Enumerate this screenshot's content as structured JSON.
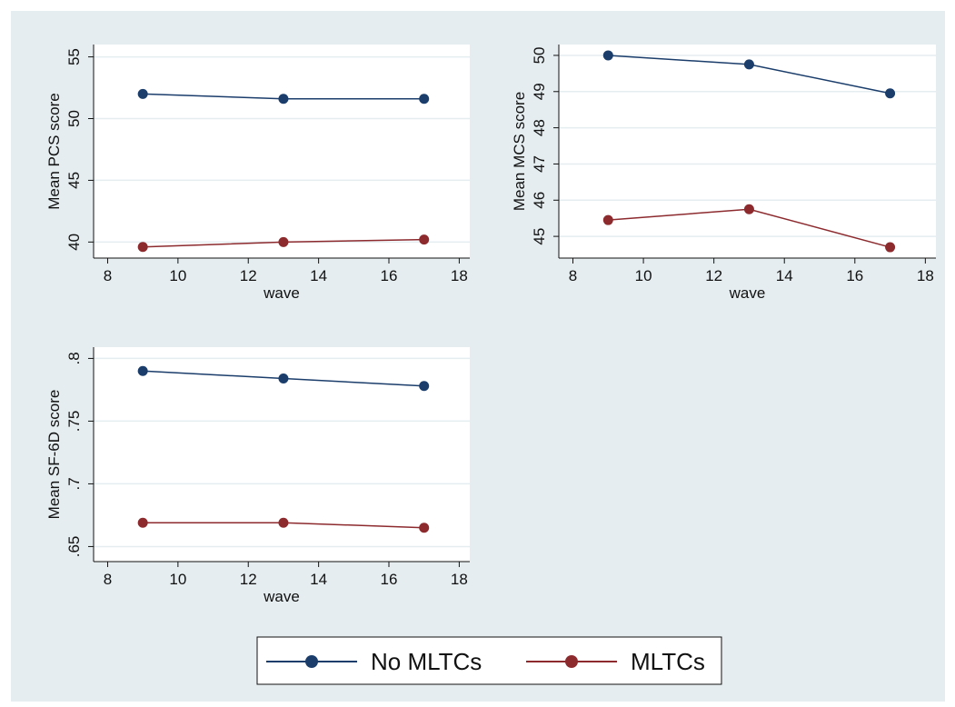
{
  "chart_data": [
    {
      "type": "line",
      "x_label": "wave",
      "y_label": "Mean PCS score",
      "x": [
        9,
        13,
        17
      ],
      "series": [
        {
          "values": [
            52.0,
            51.6,
            51.6
          ]
        },
        {
          "values": [
            39.6,
            40.0,
            40.2
          ]
        }
      ],
      "xlim": [
        7.6,
        18.3
      ],
      "xticks": [
        8,
        10,
        12,
        14,
        16,
        18
      ],
      "ylim": [
        38.7,
        56
      ],
      "yticks": [
        40,
        45,
        50,
        55
      ],
      "grid": true
    },
    {
      "type": "line",
      "x_label": "wave",
      "y_label": "Mean MCS score",
      "x": [
        9,
        13,
        17
      ],
      "series": [
        {
          "values": [
            50.0,
            49.75,
            48.95
          ]
        },
        {
          "values": [
            45.45,
            45.75,
            44.7
          ]
        }
      ],
      "xlim": [
        7.6,
        18.3
      ],
      "xticks": [
        8,
        10,
        12,
        14,
        16,
        18
      ],
      "ylim": [
        44.4,
        50.3
      ],
      "yticks": [
        45,
        46,
        47,
        48,
        49,
        50
      ],
      "grid": true
    },
    {
      "type": "line",
      "x_label": "wave",
      "y_label": "Mean SF-6D score",
      "x": [
        9,
        13,
        17
      ],
      "series": [
        {
          "values": [
            0.79,
            0.784,
            0.778
          ]
        },
        {
          "values": [
            0.669,
            0.669,
            0.665
          ]
        }
      ],
      "xlim": [
        7.6,
        18.3
      ],
      "xticks": [
        8,
        10,
        12,
        14,
        16,
        18
      ],
      "ylim": [
        0.638,
        0.809
      ],
      "yticks": [
        {
          "value": 0.65,
          "label": ".65"
        },
        {
          "value": 0.7,
          "label": ".7"
        },
        {
          "value": 0.75,
          "label": ".75"
        },
        {
          "value": 0.8,
          "label": ".8"
        }
      ],
      "grid": true
    }
  ],
  "legend": {
    "entries": [
      {
        "name": "No MLTCs",
        "color": "#1a3d6b"
      },
      {
        "name": "MLTCs",
        "color": "#8c2a2e"
      }
    ],
    "position": "bottom"
  }
}
